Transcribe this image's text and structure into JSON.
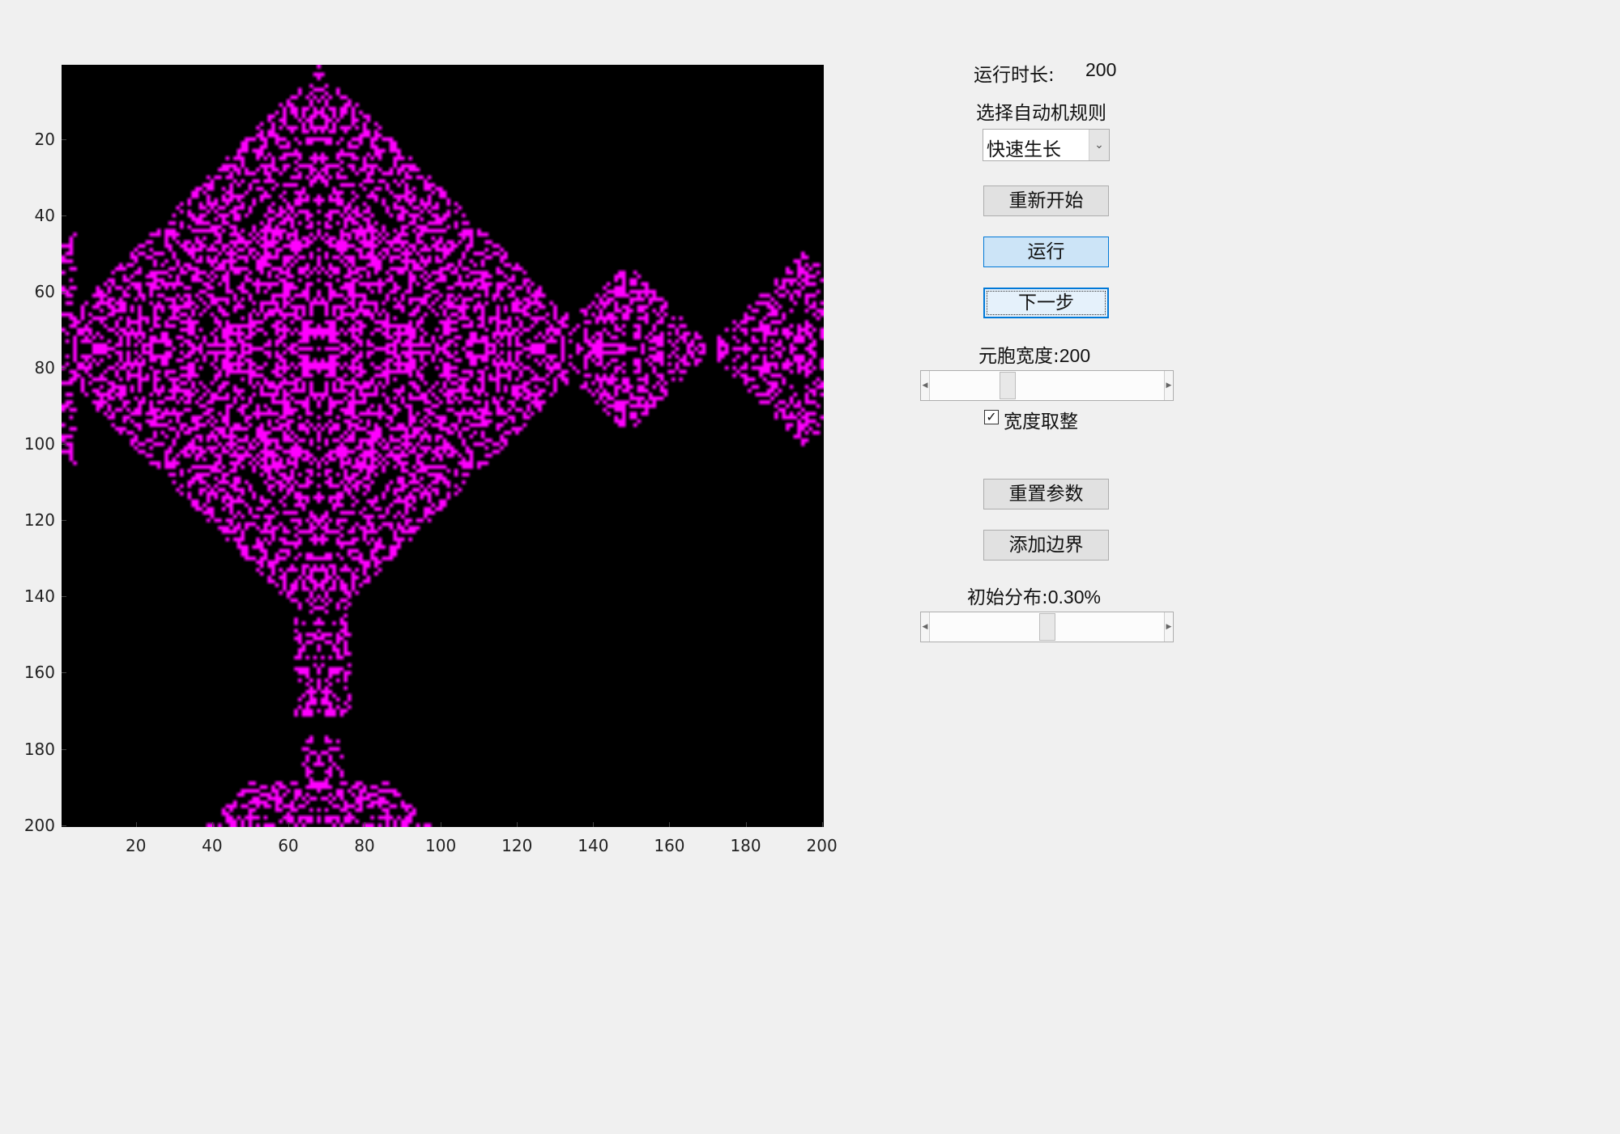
{
  "plot": {
    "cell_color": "#ff00ff",
    "background_color": "#000000",
    "grid_size": 200,
    "y_ticks": [
      "20",
      "40",
      "60",
      "80",
      "100",
      "120",
      "140",
      "160",
      "180",
      "200"
    ],
    "x_ticks": [
      "20",
      "40",
      "60",
      "80",
      "100",
      "120",
      "140",
      "160",
      "180",
      "200"
    ]
  },
  "controls": {
    "runtime_label": "运行时长:",
    "runtime_value": "200",
    "rule_label": "选择自动机规则",
    "rule_selected": "快速生长",
    "restart_button": "重新开始",
    "run_button": "运行",
    "next_step_button": "下一步",
    "cell_width_label": "元胞宽度:",
    "cell_width_value": "200",
    "cell_width_slider_fraction": 0.32,
    "round_width_checked": true,
    "round_width_label": "宽度取整",
    "reset_params_button": "重置参数",
    "add_border_button": "添加边界",
    "init_dist_label": "初始分布:",
    "init_dist_value": "0.30%",
    "init_dist_slider_fraction": 0.5
  }
}
